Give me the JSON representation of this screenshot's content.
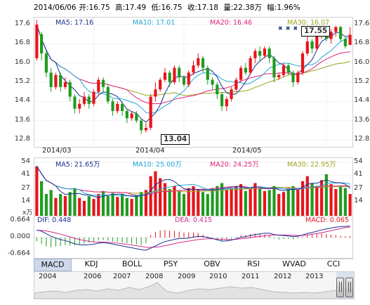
{
  "header": {
    "date": "2014/06/06",
    "open": "开:16.75",
    "high": "高:17.49",
    "low": "低:16.75",
    "close": "收:17.18",
    "volume": "量:22.38万",
    "change": "幅:1.96%"
  },
  "kline": {
    "ma_labels": {
      "ma5": "MA5: 17.16",
      "ma10": "MA10: 17.01",
      "ma20": "MA20: 16.46",
      "ma30": "MA30: 16.07"
    },
    "y_ticks": [
      "17.6",
      "16.8",
      "16.0",
      "15.2",
      "14.4",
      "13.6",
      "12.8"
    ],
    "x_ticks": [
      "2014/03",
      "2014/04",
      "2014/05"
    ],
    "high_callout": "17.55",
    "low_callout": "13.04"
  },
  "volume": {
    "ma_labels": {
      "ma5": "MA5: 21.65万",
      "ma10": "MA10: 25.00万",
      "ma20": "MA20: 24.25万",
      "ma30": "MA30: 22.95万"
    },
    "y_ticks": [
      "54",
      "41",
      "27",
      "14"
    ],
    "unit": "x万"
  },
  "macd": {
    "dif_label": "DIF: 0.448",
    "dea_label": "DEA: 0.415",
    "macd_label": "MACD: 0.065",
    "y_ticks": [
      "0.664",
      "0.000",
      "-0.664"
    ]
  },
  "tabs": [
    "MACD",
    "KDJ",
    "BOLL",
    "PSY",
    "OBV",
    "RSI",
    "WVAD",
    "CCI"
  ],
  "active_tab": "MACD",
  "timeline": {
    "years": [
      "2004",
      "2006",
      "2007",
      "2008",
      "2009",
      "2010",
      "2011",
      "2012",
      "2013"
    ]
  },
  "colors": {
    "up": "#e8141c",
    "down": "#1f9b1f",
    "ma5": "#1b2f8f",
    "ma10": "#23a6d8",
    "ma20": "#e0217c",
    "ma30": "#9aa620"
  },
  "chart_data": {
    "type": "candlestick",
    "price_range": [
      12.8,
      17.6
    ],
    "candles": [
      {
        "o": 16.2,
        "c": 17.6,
        "h": 17.8,
        "l": 16.1
      },
      {
        "o": 17.2,
        "c": 16.4,
        "h": 17.3,
        "l": 16.1
      },
      {
        "o": 16.4,
        "c": 15.6,
        "h": 16.5,
        "l": 15.4
      },
      {
        "o": 15.6,
        "c": 15.0,
        "h": 15.8,
        "l": 14.8
      },
      {
        "o": 15.0,
        "c": 15.5,
        "h": 15.6,
        "l": 14.9
      },
      {
        "o": 15.5,
        "c": 15.0,
        "h": 15.6,
        "l": 14.8
      },
      {
        "o": 15.0,
        "c": 15.2,
        "h": 15.4,
        "l": 14.9
      },
      {
        "o": 15.2,
        "c": 14.6,
        "h": 15.3,
        "l": 14.4
      },
      {
        "o": 14.6,
        "c": 14.1,
        "h": 14.7,
        "l": 13.9
      },
      {
        "o": 14.1,
        "c": 14.3,
        "h": 14.5,
        "l": 13.9
      },
      {
        "o": 14.3,
        "c": 14.6,
        "h": 14.8,
        "l": 14.2
      },
      {
        "o": 14.6,
        "c": 14.3,
        "h": 14.7,
        "l": 14.1
      },
      {
        "o": 14.3,
        "c": 14.8,
        "h": 14.9,
        "l": 14.2
      },
      {
        "o": 14.8,
        "c": 15.3,
        "h": 15.4,
        "l": 14.7
      },
      {
        "o": 15.3,
        "c": 15.0,
        "h": 15.4,
        "l": 14.8
      },
      {
        "o": 15.0,
        "c": 14.4,
        "h": 15.1,
        "l": 14.3
      },
      {
        "o": 14.4,
        "c": 14.0,
        "h": 14.5,
        "l": 13.8
      },
      {
        "o": 14.0,
        "c": 14.3,
        "h": 14.4,
        "l": 13.9
      },
      {
        "o": 14.3,
        "c": 14.0,
        "h": 14.4,
        "l": 13.8
      },
      {
        "o": 14.0,
        "c": 13.7,
        "h": 14.1,
        "l": 13.5
      },
      {
        "o": 13.7,
        "c": 13.9,
        "h": 14.0,
        "l": 13.6
      },
      {
        "o": 13.9,
        "c": 13.6,
        "h": 14.0,
        "l": 13.5
      },
      {
        "o": 13.6,
        "c": 13.2,
        "h": 13.7,
        "l": 13.04
      },
      {
        "o": 13.2,
        "c": 13.3,
        "h": 13.5,
        "l": 13.1
      },
      {
        "o": 13.3,
        "c": 14.6,
        "h": 14.7,
        "l": 13.2
      },
      {
        "o": 14.6,
        "c": 14.9,
        "h": 15.2,
        "l": 14.4
      },
      {
        "o": 14.9,
        "c": 15.3,
        "h": 15.4,
        "l": 14.8
      },
      {
        "o": 15.3,
        "c": 15.6,
        "h": 15.8,
        "l": 15.2
      },
      {
        "o": 15.6,
        "c": 15.2,
        "h": 15.7,
        "l": 15.0
      },
      {
        "o": 15.2,
        "c": 15.8,
        "h": 15.9,
        "l": 15.1
      },
      {
        "o": 15.8,
        "c": 15.4,
        "h": 15.9,
        "l": 15.2
      },
      {
        "o": 15.4,
        "c": 15.1,
        "h": 15.5,
        "l": 15.0
      },
      {
        "o": 15.1,
        "c": 15.6,
        "h": 15.7,
        "l": 15.0
      },
      {
        "o": 15.6,
        "c": 15.9,
        "h": 16.1,
        "l": 15.5
      },
      {
        "o": 15.9,
        "c": 16.2,
        "h": 16.4,
        "l": 15.8
      },
      {
        "o": 16.2,
        "c": 15.8,
        "h": 16.3,
        "l": 15.6
      },
      {
        "o": 15.8,
        "c": 15.3,
        "h": 15.9,
        "l": 15.1
      },
      {
        "o": 15.3,
        "c": 15.1,
        "h": 15.4,
        "l": 14.9
      },
      {
        "o": 15.1,
        "c": 14.7,
        "h": 15.2,
        "l": 14.5
      },
      {
        "o": 14.7,
        "c": 14.2,
        "h": 14.8,
        "l": 14.0
      },
      {
        "o": 14.2,
        "c": 14.5,
        "h": 14.6,
        "l": 14.0
      },
      {
        "o": 14.5,
        "c": 14.9,
        "h": 15.0,
        "l": 14.4
      },
      {
        "o": 14.9,
        "c": 15.3,
        "h": 15.4,
        "l": 14.8
      },
      {
        "o": 15.3,
        "c": 15.8,
        "h": 15.9,
        "l": 15.2
      },
      {
        "o": 15.8,
        "c": 15.6,
        "h": 16.0,
        "l": 15.5
      },
      {
        "o": 15.6,
        "c": 16.2,
        "h": 16.3,
        "l": 15.5
      },
      {
        "o": 16.2,
        "c": 16.5,
        "h": 16.6,
        "l": 16.0
      },
      {
        "o": 16.5,
        "c": 16.3,
        "h": 16.7,
        "l": 16.1
      },
      {
        "o": 16.3,
        "c": 16.6,
        "h": 16.7,
        "l": 16.2
      },
      {
        "o": 16.6,
        "c": 16.2,
        "h": 16.7,
        "l": 16.0
      },
      {
        "o": 16.2,
        "c": 15.4,
        "h": 16.3,
        "l": 15.2
      },
      {
        "o": 15.4,
        "c": 15.5,
        "h": 15.6,
        "l": 15.3
      },
      {
        "o": 15.5,
        "c": 15.9,
        "h": 16.0,
        "l": 15.4
      },
      {
        "o": 15.9,
        "c": 15.6,
        "h": 16.0,
        "l": 15.5
      },
      {
        "o": 15.6,
        "c": 15.2,
        "h": 15.7,
        "l": 15.0
      },
      {
        "o": 15.2,
        "c": 15.6,
        "h": 15.7,
        "l": 15.1
      },
      {
        "o": 15.6,
        "c": 16.4,
        "h": 16.5,
        "l": 15.5
      },
      {
        "o": 16.4,
        "c": 16.9,
        "h": 17.1,
        "l": 16.3
      },
      {
        "o": 16.9,
        "c": 16.6,
        "h": 17.0,
        "l": 16.4
      },
      {
        "o": 16.6,
        "c": 17.2,
        "h": 17.3,
        "l": 16.5
      },
      {
        "o": 17.2,
        "c": 17.4,
        "h": 17.55,
        "l": 17.0
      },
      {
        "o": 17.4,
        "c": 17.0,
        "h": 17.5,
        "l": 16.9
      },
      {
        "o": 17.0,
        "c": 17.3,
        "h": 17.4,
        "l": 16.8
      },
      {
        "o": 17.3,
        "c": 17.5,
        "h": 17.55,
        "l": 17.1
      },
      {
        "o": 17.5,
        "c": 17.0,
        "h": 17.55,
        "l": 16.9
      },
      {
        "o": 17.0,
        "c": 16.7,
        "h": 17.1,
        "l": 16.6
      },
      {
        "o": 16.75,
        "c": 17.18,
        "h": 17.49,
        "l": 16.75
      }
    ],
    "volumes": [
      50,
      35,
      22,
      26,
      18,
      22,
      20,
      24,
      28,
      18,
      15,
      20,
      17,
      22,
      25,
      20,
      23,
      19,
      22,
      18,
      17,
      21,
      24,
      26,
      40,
      45,
      38,
      33,
      27,
      30,
      25,
      22,
      28,
      30,
      26,
      24,
      22,
      28,
      30,
      33,
      26,
      28,
      30,
      32,
      25,
      27,
      33,
      28,
      25,
      26,
      30,
      22,
      24,
      28,
      30,
      26,
      35,
      40,
      33,
      30,
      36,
      42,
      32,
      27,
      30,
      28,
      22
    ],
    "macd_range": [
      -0.664,
      0.664
    ],
    "macd_hist": [
      -0.15,
      -0.25,
      -0.35,
      -0.38,
      -0.35,
      -0.33,
      -0.3,
      -0.32,
      -0.3,
      -0.27,
      -0.24,
      -0.2,
      -0.16,
      -0.12,
      -0.1,
      -0.12,
      -0.15,
      -0.17,
      -0.2,
      -0.22,
      -0.24,
      -0.27,
      -0.3,
      -0.22,
      0.1,
      0.22,
      0.28,
      0.3,
      0.27,
      0.26,
      0.23,
      0.2,
      0.2,
      0.2,
      0.18,
      0.12,
      0.05,
      -0.02,
      -0.1,
      -0.14,
      -0.1,
      -0.04,
      0.03,
      0.09,
      0.1,
      0.13,
      0.15,
      0.13,
      0.12,
      0.08,
      -0.04,
      -0.08,
      -0.06,
      -0.05,
      -0.07,
      -0.04,
      0.04,
      0.12,
      0.12,
      0.14,
      0.16,
      0.14,
      0.12,
      0.1,
      0.07,
      0.05,
      0.065
    ],
    "dif": [
      0.3,
      0.25,
      0.15,
      0.05,
      -0.02,
      -0.08,
      -0.12,
      -0.18,
      -0.25,
      -0.28,
      -0.29,
      -0.28,
      -0.26,
      -0.22,
      -0.2,
      -0.22,
      -0.26,
      -0.3,
      -0.33,
      -0.37,
      -0.4,
      -0.44,
      -0.48,
      -0.5,
      -0.42,
      -0.33,
      -0.24,
      -0.16,
      -0.12,
      -0.07,
      -0.04,
      -0.04,
      -0.02,
      0.02,
      0.05,
      0.04,
      0.0,
      -0.04,
      -0.09,
      -0.14,
      -0.13,
      -0.1,
      -0.05,
      0.01,
      0.04,
      0.08,
      0.12,
      0.14,
      0.17,
      0.17,
      0.12,
      0.09,
      0.08,
      0.06,
      0.04,
      0.05,
      0.1,
      0.16,
      0.2,
      0.25,
      0.3,
      0.34,
      0.37,
      0.41,
      0.43,
      0.44,
      0.448
    ],
    "dea": [
      0.28,
      0.28,
      0.26,
      0.22,
      0.18,
      0.13,
      0.08,
      0.03,
      -0.03,
      -0.08,
      -0.12,
      -0.15,
      -0.17,
      -0.18,
      -0.18,
      -0.19,
      -0.2,
      -0.22,
      -0.24,
      -0.27,
      -0.29,
      -0.32,
      -0.35,
      -0.38,
      -0.39,
      -0.38,
      -0.36,
      -0.32,
      -0.28,
      -0.24,
      -0.2,
      -0.17,
      -0.14,
      -0.11,
      -0.08,
      -0.06,
      -0.05,
      -0.05,
      -0.06,
      -0.07,
      -0.08,
      -0.08,
      -0.07,
      -0.05,
      -0.03,
      -0.01,
      0.02,
      0.05,
      0.07,
      0.09,
      0.1,
      0.1,
      0.1,
      0.09,
      0.09,
      0.08,
      0.09,
      0.1,
      0.13,
      0.16,
      0.19,
      0.23,
      0.27,
      0.31,
      0.35,
      0.39,
      0.415
    ]
  }
}
